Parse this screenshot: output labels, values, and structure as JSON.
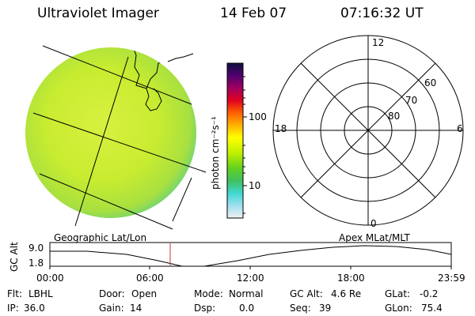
{
  "header": {
    "instrument": "Ultraviolet Imager",
    "date": "14 Feb 07",
    "time": "07:16:32 UT"
  },
  "colorbar": {
    "unit_label": "photon cm⁻²s⁻¹",
    "tick_100": "100",
    "tick_10": "10",
    "colors": [
      "#101040",
      "#301060",
      "#800080",
      "#c00060",
      "#e00020",
      "#ff4000",
      "#ff9000",
      "#ffc000",
      "#ffff00",
      "#d0ff00",
      "#80e000",
      "#40c040",
      "#40d0a0",
      "#40e0e0",
      "#a0e0f0",
      "#e0e0e0"
    ]
  },
  "polar_plot": {
    "label_top": "12",
    "label_left": "18",
    "label_right": "6",
    "label_bottom": "0",
    "lat_60": "60",
    "lat_70": "70",
    "lat_80": "80"
  },
  "timeline": {
    "left_label": "Geographic Lat/Lon",
    "right_label": "Apex MLat/MLT",
    "axis_label": "GC Alt",
    "y_max": "9.0",
    "y_min": "1.8",
    "ticks": [
      "00:00",
      "06:00",
      "12:00",
      "18:00",
      "23:59"
    ],
    "cursor_color": "#d03030"
  },
  "info": {
    "flt_label": "Flt:",
    "flt_value": "LBHL",
    "door_label": "Door:",
    "door_value": "Open",
    "mode_label": "Mode:",
    "mode_value": "Normal",
    "gcalt_label": "GC Alt:",
    "gcalt_value": "4.6 Re",
    "glat_label": "GLat:",
    "glat_value": "-0.2",
    "ip_label": "IP:",
    "ip_value": "36.0",
    "gain_label": "Gain:",
    "gain_value": "14",
    "dsp_label": "Dsp:",
    "dsp_value": "0.0",
    "seq_label": "Seq:",
    "seq_value": "39",
    "glon_label": "GLon:",
    "glon_value": "75.4"
  }
}
